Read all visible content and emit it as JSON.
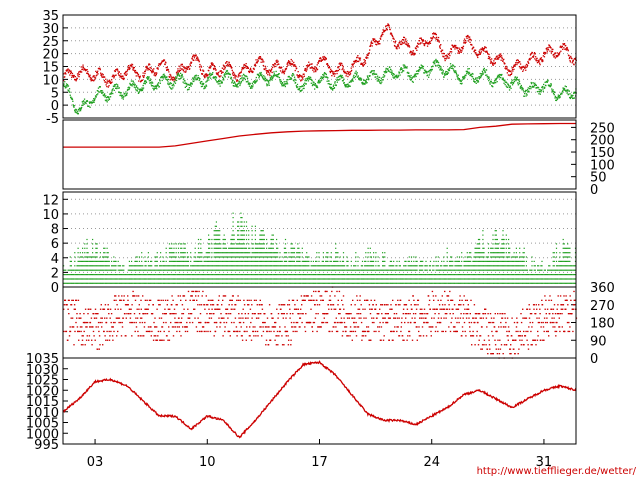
{
  "credit": "http://www.tiefflieger.de/wetter/",
  "x_axis": {
    "days_in_range": 32,
    "ticks": [
      {
        "label": "03",
        "day": 2
      },
      {
        "label": "10",
        "day": 9
      },
      {
        "label": "17",
        "day": 16
      },
      {
        "label": "24",
        "day": 23
      },
      {
        "label": "31",
        "day": 30
      }
    ]
  },
  "colors": {
    "red": "#cc0000",
    "green": "#20a020",
    "grid": "#9a9a9a",
    "frame": "#000000"
  },
  "chart_data": [
    {
      "type": "scatter",
      "panel": "temperature",
      "ylim": [
        -5,
        35
      ],
      "y_ticks": [
        "35",
        "30",
        "25",
        "20",
        "15",
        "10",
        "5",
        "0",
        "-5"
      ],
      "y_tick_side": "left",
      "grid": true,
      "series": [
        {
          "color": "red",
          "x": [
            0,
            1,
            2,
            3,
            4,
            5,
            6,
            7,
            8,
            9,
            10,
            11,
            12,
            13,
            14,
            15,
            16,
            17,
            18,
            19,
            20,
            21,
            22,
            23,
            24,
            25,
            26,
            27,
            28,
            29,
            30,
            31,
            32
          ],
          "y": [
            11,
            13,
            12,
            10,
            14,
            12,
            16,
            11,
            18,
            13,
            15,
            12,
            17,
            14,
            16,
            12,
            18,
            13,
            15,
            20,
            30,
            24,
            22,
            27,
            19,
            25,
            21,
            18,
            14,
            17,
            20,
            22,
            18
          ]
        },
        {
          "color": "green",
          "x": [
            0,
            1,
            2,
            3,
            4,
            5,
            6,
            7,
            8,
            9,
            10,
            11,
            12,
            13,
            14,
            15,
            16,
            17,
            18,
            19,
            20,
            21,
            22,
            23,
            24,
            25,
            26,
            27,
            28,
            29,
            30,
            31,
            32
          ],
          "y": [
            8,
            -2,
            4,
            5,
            6,
            8,
            9,
            10,
            9,
            10,
            11,
            9,
            10,
            11,
            10,
            8,
            10,
            9,
            10,
            11,
            12,
            13,
            12,
            15,
            14,
            11,
            12,
            10,
            9,
            6,
            8,
            4,
            6
          ]
        }
      ]
    },
    {
      "type": "line",
      "panel": "cumulative",
      "ylim": [
        0,
        280
      ],
      "y_ticks": [
        "250",
        "200",
        "150",
        "100",
        "50",
        "0"
      ],
      "y_tick_side": "right",
      "grid": false,
      "series": [
        {
          "color": "red",
          "x": [
            0,
            6,
            7,
            8,
            9,
            10,
            11,
            12,
            13,
            14,
            15,
            16,
            17,
            18,
            19,
            20,
            21,
            22,
            23,
            24,
            25,
            26,
            27,
            28,
            29,
            30,
            31,
            32
          ],
          "y": [
            170,
            170,
            175,
            185,
            195,
            205,
            215,
            222,
            228,
            232,
            235,
            236,
            237,
            238,
            238,
            239,
            239,
            240,
            240,
            240,
            241,
            250,
            255,
            263,
            264,
            265,
            266,
            266
          ]
        }
      ]
    },
    {
      "type": "bar",
      "panel": "wind_speed",
      "ylim": [
        0,
        13
      ],
      "y_ticks": [
        "12",
        "10",
        "8",
        "6",
        "4",
        "2",
        "0"
      ],
      "y_tick_side": "left",
      "grid": true,
      "series": [
        {
          "color": "green",
          "x": [
            0,
            1,
            2,
            3,
            4,
            5,
            6,
            7,
            8,
            9,
            10,
            11,
            12,
            13,
            14,
            15,
            16,
            17,
            18,
            19,
            20,
            21,
            22,
            23,
            24,
            25,
            26,
            27,
            28,
            29,
            30,
            31,
            32
          ],
          "y": [
            4,
            6,
            8,
            5,
            4,
            5,
            6,
            7,
            6,
            8,
            10,
            12,
            9,
            8,
            7,
            6,
            5,
            6,
            5,
            6,
            5,
            4,
            5,
            4,
            6,
            5,
            8,
            9,
            7,
            5,
            4,
            7,
            6
          ]
        }
      ]
    },
    {
      "type": "scatter",
      "panel": "wind_direction",
      "ylim": [
        0,
        360
      ],
      "y_ticks": [
        "360",
        "270",
        "180",
        "90",
        "0"
      ],
      "y_tick_side": "right",
      "grid": false,
      "series": [
        {
          "color": "red",
          "x": [
            0,
            2,
            4,
            6,
            8,
            10,
            12,
            14,
            16,
            18,
            20,
            22,
            24,
            26,
            28,
            30,
            32
          ],
          "y": [
            200,
            150,
            230,
            180,
            240,
            220,
            190,
            170,
            260,
            210,
            180,
            200,
            240,
            150,
            100,
            210,
            230
          ]
        }
      ]
    },
    {
      "type": "line",
      "panel": "pressure",
      "ylim": [
        995,
        1035
      ],
      "y_ticks": [
        "1035",
        "1030",
        "1025",
        "1020",
        "1015",
        "1010",
        "1005",
        "1000",
        "995"
      ],
      "y_tick_side": "left",
      "grid": false,
      "series": [
        {
          "color": "red",
          "x": [
            0,
            1,
            2,
            3,
            4,
            5,
            6,
            7,
            8,
            9,
            10,
            11,
            12,
            13,
            14,
            15,
            16,
            17,
            18,
            19,
            20,
            21,
            22,
            23,
            24,
            25,
            26,
            27,
            28,
            29,
            30,
            31,
            32
          ],
          "y": [
            1010,
            1016,
            1024,
            1025,
            1022,
            1015,
            1008,
            1008,
            1002,
            1008,
            1006,
            998,
            1006,
            1015,
            1024,
            1032,
            1033,
            1027,
            1018,
            1009,
            1006,
            1006,
            1004,
            1008,
            1012,
            1018,
            1020,
            1016,
            1012,
            1016,
            1020,
            1022,
            1020
          ]
        }
      ]
    }
  ]
}
